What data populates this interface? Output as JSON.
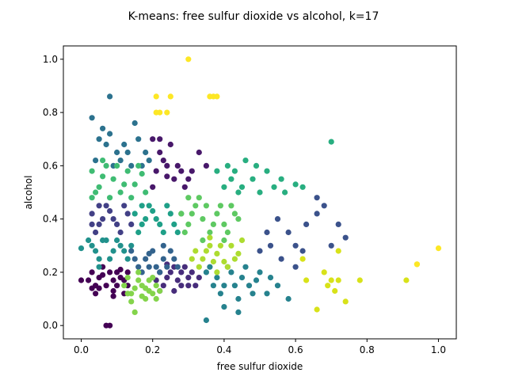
{
  "chart_data": {
    "type": "scatter",
    "title": "K-means: free sulfur dioxide vs alcohol, k=17",
    "xlabel": "free sulfur dioxide",
    "ylabel": "alcohol",
    "xlim": [
      -0.05,
      1.05
    ],
    "ylim": [
      -0.05,
      1.05
    ],
    "xticks": [
      0.0,
      0.2,
      0.4,
      0.6,
      0.8,
      1.0
    ],
    "yticks": [
      0.0,
      0.2,
      0.4,
      0.6,
      0.8,
      1.0
    ],
    "xtick_labels": [
      "0.0",
      "0.2",
      "0.4",
      "0.6",
      "0.8",
      "1.0"
    ],
    "ytick_labels": [
      "0.0",
      "0.2",
      "0.4",
      "0.6",
      "0.8",
      "1.0"
    ],
    "grid": false,
    "series": [
      {
        "color": "#440154",
        "points": [
          [
            0.03,
            0.2
          ],
          [
            0.05,
            0.18
          ],
          [
            0.07,
            0.15
          ],
          [
            0.09,
            0.13
          ],
          [
            0.11,
            0.18
          ],
          [
            0.13,
            0.2
          ],
          [
            0.04,
            0.12
          ],
          [
            0.06,
            0.22
          ],
          [
            0.08,
            0.2
          ],
          [
            0.1,
            0.15
          ],
          [
            0.12,
            0.12
          ],
          [
            0.02,
            0.17
          ],
          [
            0.0,
            0.17
          ],
          [
            0.05,
            0.14
          ],
          [
            0.07,
            0.0
          ],
          [
            0.08,
            0.0
          ],
          [
            0.09,
            0.17
          ],
          [
            0.11,
            0.21
          ],
          [
            0.13,
            0.15
          ],
          [
            0.04,
            0.15
          ],
          [
            0.06,
            0.19
          ],
          [
            0.1,
            0.2
          ],
          [
            0.12,
            0.17
          ],
          [
            0.03,
            0.14
          ],
          [
            0.09,
            0.11
          ]
        ]
      },
      {
        "color": "#48186a",
        "points": [
          [
            0.2,
            0.7
          ],
          [
            0.22,
            0.65
          ],
          [
            0.24,
            0.6
          ],
          [
            0.26,
            0.55
          ],
          [
            0.21,
            0.58
          ],
          [
            0.23,
            0.62
          ],
          [
            0.25,
            0.68
          ],
          [
            0.27,
            0.6
          ],
          [
            0.29,
            0.52
          ],
          [
            0.31,
            0.58
          ],
          [
            0.33,
            0.65
          ],
          [
            0.35,
            0.6
          ],
          [
            0.2,
            0.52
          ],
          [
            0.24,
            0.56
          ],
          [
            0.28,
            0.58
          ],
          [
            0.22,
            0.7
          ],
          [
            0.3,
            0.55
          ]
        ]
      },
      {
        "color": "#472d7b",
        "points": [
          [
            0.22,
            0.2
          ],
          [
            0.24,
            0.18
          ],
          [
            0.26,
            0.22
          ],
          [
            0.28,
            0.15
          ],
          [
            0.3,
            0.18
          ],
          [
            0.23,
            0.15
          ],
          [
            0.25,
            0.2
          ],
          [
            0.27,
            0.17
          ],
          [
            0.29,
            0.22
          ],
          [
            0.31,
            0.2
          ],
          [
            0.21,
            0.17
          ],
          [
            0.33,
            0.18
          ],
          [
            0.26,
            0.13
          ],
          [
            0.28,
            0.2
          ],
          [
            0.3,
            0.15
          ],
          [
            0.24,
            0.23
          ],
          [
            0.32,
            0.15
          ],
          [
            0.22,
            0.13
          ]
        ]
      },
      {
        "color": "#424086",
        "points": [
          [
            0.03,
            0.42
          ],
          [
            0.05,
            0.38
          ],
          [
            0.07,
            0.45
          ],
          [
            0.09,
            0.4
          ],
          [
            0.11,
            0.35
          ],
          [
            0.13,
            0.42
          ],
          [
            0.04,
            0.35
          ],
          [
            0.06,
            0.4
          ],
          [
            0.08,
            0.43
          ],
          [
            0.1,
            0.38
          ],
          [
            0.12,
            0.45
          ],
          [
            0.03,
            0.38
          ],
          [
            0.05,
            0.45
          ],
          [
            0.14,
            0.38
          ]
        ]
      },
      {
        "color": "#3b528b",
        "points": [
          [
            0.55,
            0.4
          ],
          [
            0.58,
            0.35
          ],
          [
            0.6,
            0.3
          ],
          [
            0.63,
            0.38
          ],
          [
            0.66,
            0.42
          ],
          [
            0.7,
            0.3
          ],
          [
            0.72,
            0.38
          ],
          [
            0.74,
            0.33
          ],
          [
            0.5,
            0.28
          ],
          [
            0.52,
            0.35
          ],
          [
            0.56,
            0.25
          ],
          [
            0.6,
            0.22
          ],
          [
            0.62,
            0.28
          ],
          [
            0.66,
            0.48
          ],
          [
            0.68,
            0.45
          ],
          [
            0.53,
            0.3
          ]
        ]
      },
      {
        "color": "#33638d",
        "points": [
          [
            0.15,
            0.25
          ],
          [
            0.17,
            0.2
          ],
          [
            0.19,
            0.27
          ],
          [
            0.21,
            0.22
          ],
          [
            0.23,
            0.25
          ],
          [
            0.25,
            0.28
          ],
          [
            0.16,
            0.22
          ],
          [
            0.18,
            0.25
          ],
          [
            0.2,
            0.28
          ],
          [
            0.22,
            0.2
          ],
          [
            0.24,
            0.22
          ],
          [
            0.26,
            0.25
          ],
          [
            0.14,
            0.28
          ],
          [
            0.27,
            0.22
          ],
          [
            0.19,
            0.22
          ],
          [
            0.23,
            0.3
          ]
        ]
      },
      {
        "color": "#2c728e",
        "points": [
          [
            0.03,
            0.78
          ],
          [
            0.05,
            0.7
          ],
          [
            0.08,
            0.72
          ],
          [
            0.08,
            0.86
          ],
          [
            0.1,
            0.65
          ],
          [
            0.12,
            0.68
          ],
          [
            0.14,
            0.6
          ],
          [
            0.16,
            0.7
          ],
          [
            0.18,
            0.65
          ],
          [
            0.04,
            0.62
          ],
          [
            0.07,
            0.68
          ],
          [
            0.11,
            0.62
          ],
          [
            0.13,
            0.65
          ],
          [
            0.15,
            0.76
          ],
          [
            0.17,
            0.6
          ],
          [
            0.06,
            0.74
          ],
          [
            0.09,
            0.6
          ],
          [
            0.19,
            0.62
          ]
        ]
      },
      {
        "color": "#26828e",
        "points": [
          [
            0.35,
            0.2
          ],
          [
            0.38,
            0.18
          ],
          [
            0.4,
            0.15
          ],
          [
            0.42,
            0.2
          ],
          [
            0.45,
            0.18
          ],
          [
            0.47,
            0.15
          ],
          [
            0.5,
            0.2
          ],
          [
            0.52,
            0.12
          ],
          [
            0.55,
            0.15
          ],
          [
            0.58,
            0.1
          ],
          [
            0.36,
            0.22
          ],
          [
            0.39,
            0.12
          ],
          [
            0.41,
            0.22
          ],
          [
            0.44,
            0.1
          ],
          [
            0.46,
            0.22
          ],
          [
            0.48,
            0.12
          ],
          [
            0.37,
            0.15
          ],
          [
            0.43,
            0.15
          ],
          [
            0.49,
            0.17
          ],
          [
            0.35,
            0.02
          ],
          [
            0.44,
            0.05
          ],
          [
            0.53,
            0.18
          ],
          [
            0.4,
            0.07
          ]
        ]
      },
      {
        "color": "#21918c",
        "points": [
          [
            0.03,
            0.3
          ],
          [
            0.05,
            0.25
          ],
          [
            0.07,
            0.32
          ],
          [
            0.09,
            0.28
          ],
          [
            0.11,
            0.3
          ],
          [
            0.13,
            0.25
          ],
          [
            0.04,
            0.28
          ],
          [
            0.06,
            0.32
          ],
          [
            0.08,
            0.25
          ],
          [
            0.1,
            0.32
          ],
          [
            0.12,
            0.28
          ],
          [
            0.0,
            0.29
          ],
          [
            0.02,
            0.32
          ],
          [
            0.05,
            0.22
          ],
          [
            0.14,
            0.3
          ]
        ]
      },
      {
        "color": "#1fa088",
        "points": [
          [
            0.15,
            0.42
          ],
          [
            0.17,
            0.38
          ],
          [
            0.19,
            0.45
          ],
          [
            0.21,
            0.4
          ],
          [
            0.23,
            0.35
          ],
          [
            0.25,
            0.42
          ],
          [
            0.16,
            0.35
          ],
          [
            0.18,
            0.4
          ],
          [
            0.2,
            0.43
          ],
          [
            0.22,
            0.38
          ],
          [
            0.24,
            0.45
          ],
          [
            0.26,
            0.38
          ],
          [
            0.28,
            0.42
          ],
          [
            0.17,
            0.45
          ],
          [
            0.27,
            0.35
          ]
        ]
      },
      {
        "color": "#28ae80",
        "points": [
          [
            0.38,
            0.58
          ],
          [
            0.4,
            0.52
          ],
          [
            0.42,
            0.55
          ],
          [
            0.44,
            0.5
          ],
          [
            0.46,
            0.62
          ],
          [
            0.48,
            0.55
          ],
          [
            0.5,
            0.5
          ],
          [
            0.52,
            0.58
          ],
          [
            0.54,
            0.52
          ],
          [
            0.56,
            0.55
          ],
          [
            0.6,
            0.53
          ],
          [
            0.62,
            0.52
          ],
          [
            0.7,
            0.69
          ],
          [
            0.41,
            0.6
          ],
          [
            0.45,
            0.52
          ],
          [
            0.49,
            0.6
          ],
          [
            0.57,
            0.5
          ],
          [
            0.43,
            0.58
          ]
        ]
      },
      {
        "color": "#3fbc73",
        "points": [
          [
            0.03,
            0.58
          ],
          [
            0.05,
            0.52
          ],
          [
            0.07,
            0.6
          ],
          [
            0.09,
            0.55
          ],
          [
            0.11,
            0.5
          ],
          [
            0.13,
            0.58
          ],
          [
            0.15,
            0.53
          ],
          [
            0.17,
            0.57
          ],
          [
            0.04,
            0.5
          ],
          [
            0.06,
            0.56
          ],
          [
            0.08,
            0.48
          ],
          [
            0.1,
            0.6
          ],
          [
            0.12,
            0.53
          ],
          [
            0.14,
            0.48
          ],
          [
            0.16,
            0.6
          ],
          [
            0.18,
            0.5
          ],
          [
            0.03,
            0.48
          ],
          [
            0.06,
            0.62
          ]
        ]
      },
      {
        "color": "#5ec962",
        "points": [
          [
            0.28,
            0.42
          ],
          [
            0.3,
            0.38
          ],
          [
            0.32,
            0.45
          ],
          [
            0.34,
            0.4
          ],
          [
            0.36,
            0.35
          ],
          [
            0.38,
            0.42
          ],
          [
            0.4,
            0.38
          ],
          [
            0.42,
            0.45
          ],
          [
            0.44,
            0.4
          ],
          [
            0.29,
            0.35
          ],
          [
            0.31,
            0.42
          ],
          [
            0.33,
            0.48
          ],
          [
            0.35,
            0.45
          ],
          [
            0.37,
            0.38
          ],
          [
            0.39,
            0.45
          ],
          [
            0.41,
            0.35
          ],
          [
            0.43,
            0.42
          ],
          [
            0.3,
            0.48
          ],
          [
            0.34,
            0.32
          ],
          [
            0.4,
            0.32
          ]
        ]
      },
      {
        "color": "#84d44b",
        "points": [
          [
            0.12,
            0.15
          ],
          [
            0.14,
            0.12
          ],
          [
            0.16,
            0.17
          ],
          [
            0.18,
            0.14
          ],
          [
            0.2,
            0.12
          ],
          [
            0.13,
            0.18
          ],
          [
            0.15,
            0.14
          ],
          [
            0.17,
            0.11
          ],
          [
            0.19,
            0.17
          ],
          [
            0.21,
            0.15
          ],
          [
            0.14,
            0.09
          ],
          [
            0.16,
            0.2
          ],
          [
            0.18,
            0.1
          ],
          [
            0.2,
            0.18
          ],
          [
            0.22,
            0.13
          ],
          [
            0.15,
            0.05
          ],
          [
            0.17,
            0.15
          ],
          [
            0.13,
            0.12
          ],
          [
            0.19,
            0.13
          ],
          [
            0.21,
            0.1
          ]
        ]
      },
      {
        "color": "#addc30",
        "points": [
          [
            0.32,
            0.28
          ],
          [
            0.34,
            0.25
          ],
          [
            0.36,
            0.3
          ],
          [
            0.38,
            0.27
          ],
          [
            0.4,
            0.24
          ],
          [
            0.42,
            0.3
          ],
          [
            0.44,
            0.27
          ],
          [
            0.33,
            0.22
          ],
          [
            0.35,
            0.28
          ],
          [
            0.37,
            0.24
          ],
          [
            0.39,
            0.3
          ],
          [
            0.41,
            0.22
          ],
          [
            0.43,
            0.25
          ],
          [
            0.31,
            0.25
          ],
          [
            0.36,
            0.33
          ],
          [
            0.45,
            0.32
          ],
          [
            0.38,
            0.2
          ]
        ]
      },
      {
        "color": "#d8e219",
        "points": [
          [
            0.63,
            0.17
          ],
          [
            0.66,
            0.06
          ],
          [
            0.7,
            0.17
          ],
          [
            0.72,
            0.17
          ],
          [
            0.78,
            0.17
          ],
          [
            0.69,
            0.15
          ],
          [
            0.71,
            0.13
          ],
          [
            0.74,
            0.09
          ],
          [
            0.62,
            0.25
          ],
          [
            0.72,
            0.28
          ],
          [
            0.68,
            0.2
          ],
          [
            0.91,
            0.17
          ],
          [
            0.94,
            0.23
          ]
        ]
      },
      {
        "color": "#fde725",
        "points": [
          [
            0.3,
            1.0
          ],
          [
            0.21,
            0.86
          ],
          [
            0.25,
            0.86
          ],
          [
            0.36,
            0.86
          ],
          [
            0.38,
            0.86
          ],
          [
            0.37,
            0.86
          ],
          [
            0.21,
            0.8
          ],
          [
            0.24,
            0.8
          ],
          [
            0.22,
            0.8
          ],
          [
            1.0,
            0.29
          ],
          [
            0.94,
            0.23
          ]
        ]
      }
    ]
  }
}
